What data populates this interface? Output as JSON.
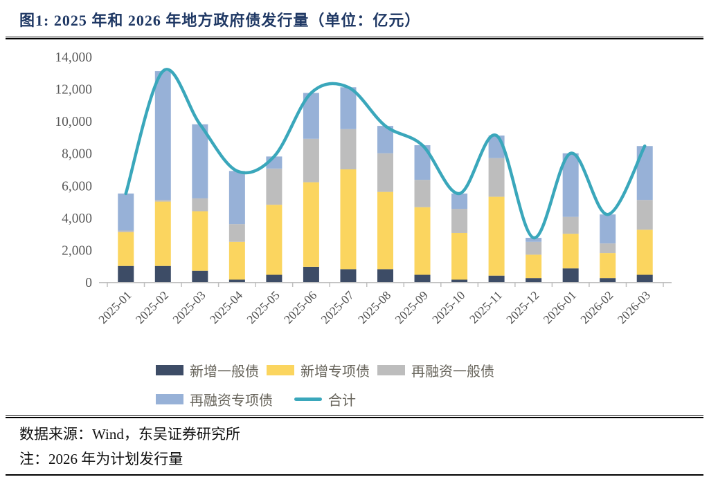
{
  "header": {
    "title": "图1:  2025 年和 2026 年地方政府债发行量（单位：亿元）"
  },
  "footer": {
    "source": "数据来源：Wind，东吴证券研究所",
    "note": "注：2026 年为计划发行量"
  },
  "chart_data": {
    "type": "bar",
    "stacked": true,
    "title": "2025年和2026年地方政府债发行量",
    "unit": "亿元",
    "grid": false,
    "legend_position": "bottom",
    "ylim": [
      0,
      14000
    ],
    "y_ticks": [
      0,
      2000,
      4000,
      6000,
      8000,
      10000,
      12000,
      14000
    ],
    "categories": [
      "2025-01",
      "2025-02",
      "2025-03",
      "2025-04",
      "2025-05",
      "2025-06",
      "2025-07",
      "2025-08",
      "2025-09",
      "2025-10",
      "2025-11",
      "2025-12",
      "2026-01",
      "2026-02",
      "2026-03"
    ],
    "series": [
      {
        "name": "新增一般债",
        "color": "#3D4C66",
        "values": [
          1000,
          1000,
          700,
          150,
          450,
          950,
          800,
          800,
          450,
          150,
          400,
          250,
          850,
          250,
          450
        ]
      },
      {
        "name": "新增专项债",
        "color": "#FBD55F",
        "values": [
          2100,
          4000,
          3700,
          2350,
          4350,
          5250,
          6200,
          4800,
          4200,
          2900,
          4900,
          1450,
          2150,
          1550,
          2800
        ]
      },
      {
        "name": "再融资一般债",
        "color": "#BDBDBD",
        "values": [
          100,
          100,
          800,
          1100,
          2250,
          2700,
          2500,
          2400,
          1700,
          1500,
          2400,
          800,
          1050,
          600,
          1850
        ]
      },
      {
        "name": "再融资专项债",
        "color": "#97B1D7",
        "values": [
          2300,
          8000,
          4600,
          3300,
          750,
          2850,
          2600,
          1700,
          2150,
          950,
          1400,
          250,
          3950,
          1800,
          3350
        ]
      }
    ],
    "line_series": {
      "name": "合计",
      "color": "#3AA7BB",
      "values": [
        5500,
        13100,
        9800,
        6900,
        7800,
        11750,
        12100,
        9700,
        8500,
        5500,
        9100,
        2750,
        8000,
        4200,
        8450
      ]
    },
    "legend_rows": [
      [
        "新增一般债",
        "新增专项债",
        "再融资一般债"
      ],
      [
        "再融资专项债",
        "合计"
      ]
    ],
    "axis_color": "#BFBFBF",
    "tick_label_color": "#595959"
  }
}
